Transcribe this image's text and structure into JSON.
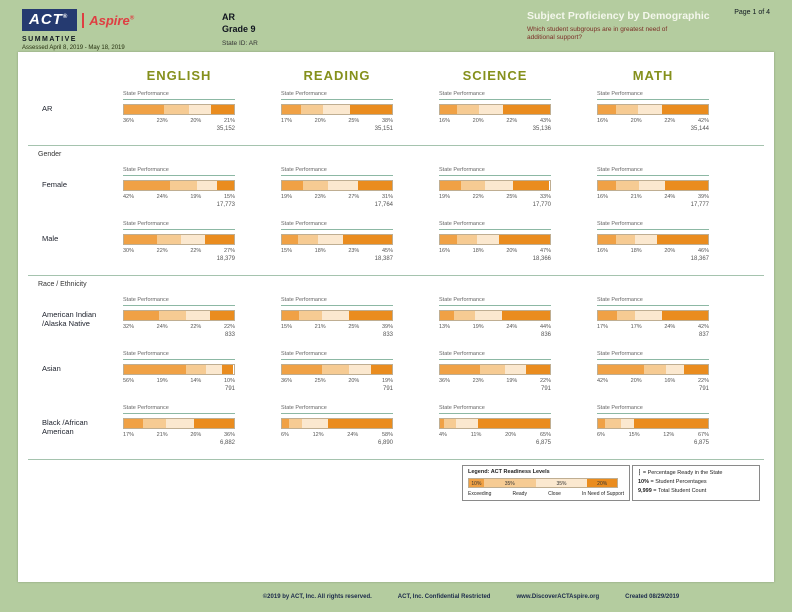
{
  "header": {
    "brand_act": "ACT",
    "brand_aspire": "Aspire",
    "reg": "®",
    "report_type": "SUMMATIVE",
    "assessed": "Assessed April 8, 2019 - May 18, 2019",
    "org": "AR",
    "grade": "Grade 9",
    "state_id": "State ID: AR",
    "title": "Subject Proficiency by Demographic",
    "question": "Which student subgroups are in greatest need of additional support?",
    "page_label": "Page 1 of 4"
  },
  "subjects": [
    "ENGLISH",
    "READING",
    "SCIENCE",
    "MATH"
  ],
  "bar_label": "State Performance",
  "levels": [
    "Exceeding",
    "Ready",
    "Close",
    "In Need of Support"
  ],
  "colors": {
    "segments": [
      "#F0A145",
      "#F6CB93",
      "#FBE8CF",
      "#EA8C1E"
    ],
    "page_green": "#b4cc9f",
    "subject_heading": "#85901c",
    "act_navy": "#253a70",
    "aspire_red": "#df3e42"
  },
  "sections": [
    {
      "title": "",
      "rows": [
        {
          "label": "AR",
          "cells": [
            {
              "values": [
                36,
                23,
                20,
                21
              ],
              "count": "35,152"
            },
            {
              "values": [
                17,
                20,
                25,
                38
              ],
              "count": "35,151"
            },
            {
              "values": [
                16,
                20,
                22,
                43
              ],
              "count": "35,136"
            },
            {
              "values": [
                16,
                20,
                22,
                42
              ],
              "count": "35,144"
            }
          ]
        }
      ]
    },
    {
      "title": "Gender",
      "rows": [
        {
          "label": "Female",
          "cells": [
            {
              "values": [
                42,
                24,
                19,
                15
              ],
              "count": "17,773"
            },
            {
              "values": [
                19,
                23,
                27,
                31
              ],
              "count": "17,764"
            },
            {
              "values": [
                19,
                22,
                25,
                33
              ],
              "count": "17,770"
            },
            {
              "values": [
                16,
                21,
                24,
                39
              ],
              "count": "17,777"
            }
          ]
        },
        {
          "label": "Male",
          "cells": [
            {
              "values": [
                30,
                22,
                22,
                27
              ],
              "count": "18,379"
            },
            {
              "values": [
                15,
                18,
                23,
                45
              ],
              "count": "18,387"
            },
            {
              "values": [
                16,
                18,
                20,
                47
              ],
              "count": "18,366"
            },
            {
              "values": [
                16,
                18,
                20,
                46
              ],
              "count": "18,367"
            }
          ]
        }
      ]
    },
    {
      "title": "Race / Ethnicity",
      "rows": [
        {
          "label": "American Indian\n/Alaska Native",
          "cells": [
            {
              "values": [
                32,
                24,
                22,
                22
              ],
              "count": "833"
            },
            {
              "values": [
                15,
                21,
                25,
                39
              ],
              "count": "833"
            },
            {
              "values": [
                13,
                19,
                24,
                44
              ],
              "count": "836"
            },
            {
              "values": [
                17,
                17,
                24,
                42
              ],
              "count": "837"
            }
          ]
        },
        {
          "label": "Asian",
          "cells": [
            {
              "values": [
                56,
                19,
                14,
                10
              ],
              "count": "791"
            },
            {
              "values": [
                36,
                25,
                20,
                19
              ],
              "count": "791"
            },
            {
              "values": [
                36,
                23,
                19,
                22
              ],
              "count": "791"
            },
            {
              "values": [
                42,
                20,
                16,
                22
              ],
              "count": "791"
            }
          ]
        },
        {
          "label": "Black /African\nAmerican",
          "cells": [
            {
              "values": [
                17,
                21,
                26,
                36
              ],
              "count": "6,882"
            },
            {
              "values": [
                6,
                12,
                24,
                58
              ],
              "count": "6,890"
            },
            {
              "values": [
                4,
                11,
                20,
                65
              ],
              "count": "6,875"
            },
            {
              "values": [
                6,
                15,
                12,
                67
              ],
              "count": "6,875"
            }
          ]
        }
      ]
    }
  ],
  "legend": {
    "title": "Legend: ACT Readiness Levels",
    "sample_values": [
      "10%",
      "35%",
      "35%",
      "20%"
    ],
    "levels": [
      "Exceeding",
      "Ready",
      "Close",
      "In Need of Support"
    ],
    "notes": [
      {
        "symbol": "┆",
        "text": "= Percentage Ready in the State"
      },
      {
        "symbol": "10%",
        "text": "= Student Percentages"
      },
      {
        "symbol": "9,999",
        "text": "= Total Student Count"
      }
    ]
  },
  "footer": {
    "copyright": "©2019 by ACT, Inc. All rights reserved.",
    "confidential": "ACT, Inc. Confidential Restricted",
    "url": "www.DiscoverACTAspire.org",
    "created": "Created 08/29/2019"
  }
}
